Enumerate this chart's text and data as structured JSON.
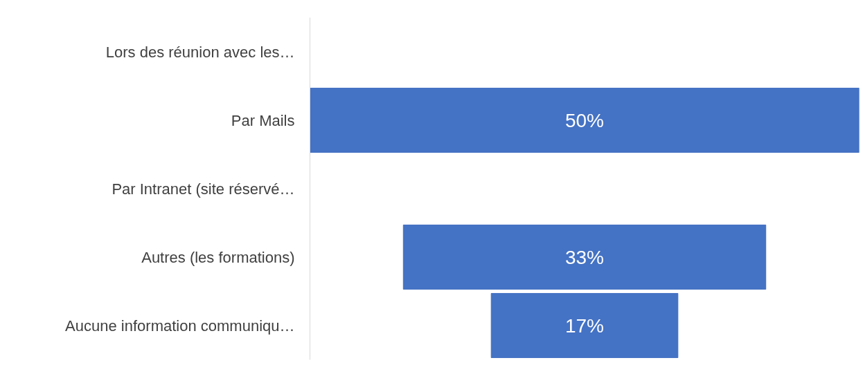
{
  "chart_data": {
    "type": "other",
    "categories": [
      "Lors des réunion avec les…",
      "Par Mails",
      "Par Intranet (site réservé…",
      "Autres (les formations)",
      "Aucune information communiqu…"
    ],
    "values": [
      null,
      50,
      null,
      33,
      17
    ],
    "value_labels": [
      null,
      "50%",
      null,
      "33%",
      "17%"
    ],
    "color": "#4472c4"
  }
}
